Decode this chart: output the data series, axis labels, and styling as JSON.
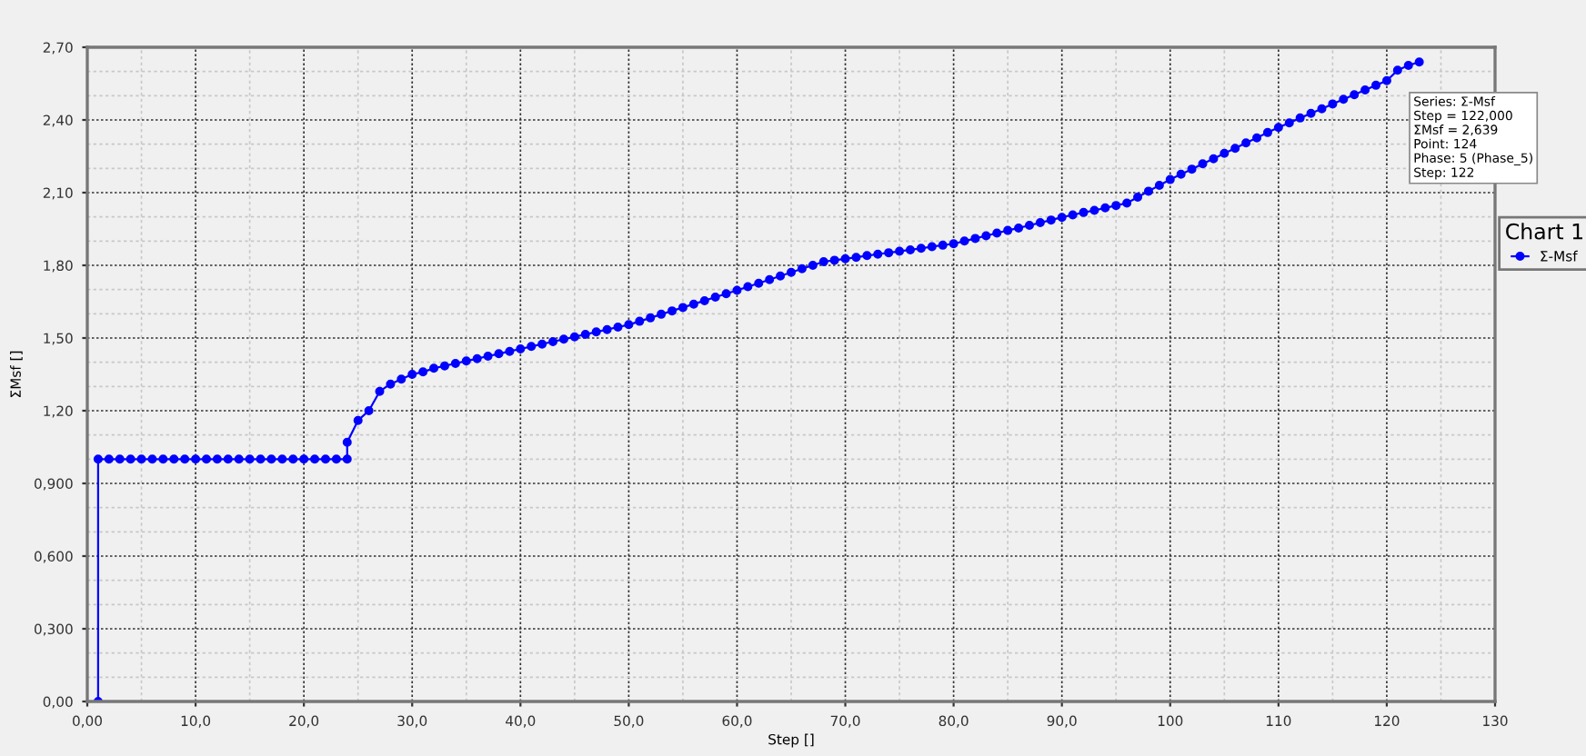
{
  "chart_data": {
    "type": "line",
    "xlabel": "Step []",
    "ylabel": "ΣMsf []",
    "legend_title": "Chart 1",
    "xlim": [
      0,
      130
    ],
    "ylim": [
      0,
      2.7
    ],
    "xticks": [
      {
        "value": 0,
        "label": "0,00"
      },
      {
        "value": 10,
        "label": "10,0"
      },
      {
        "value": 20,
        "label": "20,0"
      },
      {
        "value": 30,
        "label": "30,0"
      },
      {
        "value": 40,
        "label": "40,0"
      },
      {
        "value": 50,
        "label": "50,0"
      },
      {
        "value": 60,
        "label": "60,0"
      },
      {
        "value": 70,
        "label": "70,0"
      },
      {
        "value": 80,
        "label": "80,0"
      },
      {
        "value": 90,
        "label": "90,0"
      },
      100,
      110,
      120,
      130
    ],
    "yticks": [
      {
        "value": 0,
        "label": "0,00"
      },
      {
        "value": 0.3,
        "label": "0,300"
      },
      {
        "value": 0.6,
        "label": "0,600"
      },
      {
        "value": 0.9,
        "label": "0,900"
      },
      {
        "value": 1.2,
        "label": "1,20"
      },
      {
        "value": 1.5,
        "label": "1,50"
      },
      {
        "value": 1.8,
        "label": "1,80"
      },
      {
        "value": 2.1,
        "label": "2,10"
      },
      {
        "value": 2.4,
        "label": "2,40"
      },
      {
        "value": 2.7,
        "label": "2,70"
      }
    ],
    "grid": true,
    "legend": "right",
    "marker": "circle",
    "line_style": "solid",
    "annotations": [
      "Series: Σ-Msf\nStep = 122,000\nΣMsf = 2,639\nPoint: 124\nPhase: 5 (Phase_5)\nStep: 122"
    ],
    "series": [
      {
        "name": "Σ-Msf",
        "color": "#0000ff",
        "x": [
          1,
          1,
          2,
          3,
          4,
          5,
          6,
          7,
          8,
          9,
          10,
          11,
          12,
          13,
          14,
          15,
          16,
          17,
          18,
          19,
          20,
          21,
          22,
          23,
          24,
          24,
          25,
          26,
          27,
          28,
          29,
          30,
          31,
          32,
          33,
          34,
          35,
          36,
          37,
          38,
          39,
          40,
          41,
          42,
          43,
          44,
          45,
          46,
          47,
          48,
          49,
          50,
          51,
          52,
          53,
          54,
          55,
          56,
          57,
          58,
          59,
          60,
          61,
          62,
          63,
          64,
          65,
          66,
          67,
          68,
          69,
          70,
          71,
          72,
          73,
          74,
          75,
          76,
          77,
          78,
          79,
          80,
          81,
          82,
          83,
          84,
          85,
          86,
          87,
          88,
          89,
          90,
          91,
          92,
          93,
          94,
          95,
          96,
          97,
          98,
          99,
          100,
          101,
          102,
          103,
          104,
          105,
          106,
          107,
          108,
          109,
          110,
          111,
          112,
          113,
          114,
          115,
          116,
          117,
          118,
          119,
          120,
          121,
          122,
          123
        ],
        "values": [
          0,
          1.0,
          1.0,
          1.0,
          1.0,
          1.0,
          1.0,
          1.0,
          1.0,
          1.0,
          1.0,
          1.0,
          1.0,
          1.0,
          1.0,
          1.0,
          1.0,
          1.0,
          1.0,
          1.0,
          1.0,
          1.0,
          1.0,
          1.0,
          1.0,
          1.07,
          1.16,
          1.2,
          1.28,
          1.31,
          1.33,
          1.35,
          1.36,
          1.375,
          1.385,
          1.395,
          1.405,
          1.415,
          1.425,
          1.435,
          1.445,
          1.455,
          1.465,
          1.475,
          1.485,
          1.495,
          1.505,
          1.515,
          1.525,
          1.535,
          1.545,
          1.555,
          1.569,
          1.583,
          1.598,
          1.612,
          1.626,
          1.64,
          1.654,
          1.669,
          1.683,
          1.697,
          1.712,
          1.726,
          1.741,
          1.756,
          1.771,
          1.786,
          1.8,
          1.815,
          1.821,
          1.827,
          1.833,
          1.84,
          1.846,
          1.852,
          1.858,
          1.864,
          1.87,
          1.877,
          1.883,
          1.889,
          1.9,
          1.911,
          1.922,
          1.933,
          1.944,
          1.954,
          1.965,
          1.976,
          1.987,
          1.998,
          2.008,
          2.018,
          2.027,
          2.037,
          2.047,
          2.057,
          2.081,
          2.106,
          2.13,
          2.154,
          2.176,
          2.197,
          2.219,
          2.24,
          2.262,
          2.283,
          2.305,
          2.326,
          2.348,
          2.369,
          2.388,
          2.408,
          2.427,
          2.446,
          2.466,
          2.485,
          2.504,
          2.524,
          2.543,
          2.562,
          2.605,
          2.625,
          2.639
        ]
      }
    ]
  }
}
